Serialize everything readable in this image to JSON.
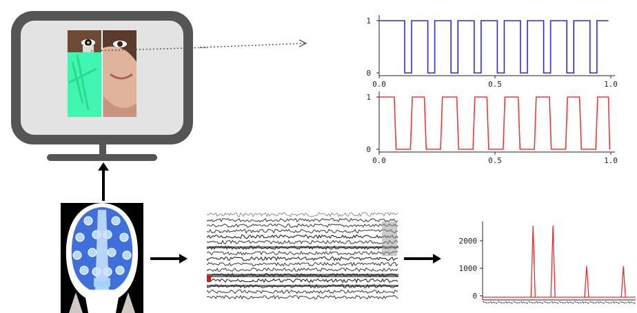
{
  "diagram": {
    "monitor_icon": "monitor-icon",
    "eeg_cap_icon": "eeg-cap-icon",
    "colors": {
      "monitor": "#555555",
      "screen": "#e3e3e3",
      "flicker_overlay": "#40f5b0",
      "arrow": "#000000",
      "cap_blue": "#2a5fd6"
    }
  },
  "chart_data": [
    {
      "type": "line",
      "step": true,
      "color": "#2b2bd8",
      "x": [
        0.0,
        0.04,
        0.04,
        0.11,
        0.11,
        0.14,
        0.14,
        0.21,
        0.21,
        0.24,
        0.24,
        0.31,
        0.31,
        0.34,
        0.34,
        0.41,
        0.41,
        0.44,
        0.44,
        0.51,
        0.51,
        0.54,
        0.54,
        0.61,
        0.61,
        0.64,
        0.64,
        0.71,
        0.71,
        0.74,
        0.74,
        0.81,
        0.81,
        0.84,
        0.84,
        0.91,
        0.91,
        0.94,
        0.94,
        0.99
      ],
      "y": [
        1,
        1,
        1,
        1,
        0,
        0,
        1,
        1,
        0,
        0,
        1,
        1,
        0,
        0,
        1,
        1,
        0,
        0,
        1,
        1,
        0,
        0,
        1,
        1,
        0,
        0,
        1,
        1,
        0,
        0,
        1,
        1,
        0,
        0,
        1,
        1,
        0,
        0,
        1,
        1
      ],
      "xticks": [
        "0.0",
        "0.5",
        "1.0"
      ],
      "yticks": [
        "0",
        "1"
      ],
      "xlim": [
        0,
        1
      ],
      "ylim": [
        0,
        1
      ]
    },
    {
      "type": "line",
      "step": true,
      "color": "#e83b3b",
      "x": [
        0.0,
        0.06,
        0.14,
        0.19,
        0.28,
        0.33,
        0.42,
        0.46,
        0.55,
        0.6,
        0.69,
        0.73,
        0.82,
        0.87,
        0.96,
        0.99
      ],
      "y": [
        1,
        1,
        1,
        1,
        1,
        1,
        1,
        1,
        1,
        1,
        1,
        1,
        1,
        1,
        1,
        1
      ],
      "low_segments": [
        [
          0.065,
          0.135
        ],
        [
          0.195,
          0.265
        ],
        [
          0.335,
          0.405
        ],
        [
          0.465,
          0.535
        ],
        [
          0.6,
          0.67
        ],
        [
          0.735,
          0.805
        ],
        [
          0.865,
          0.935
        ]
      ],
      "xticks": [
        "0.0",
        "0.5",
        "1.0"
      ],
      "yticks": [
        "0",
        "1"
      ],
      "xlim": [
        0,
        1
      ],
      "ylim": [
        0,
        1
      ]
    },
    {
      "type": "line",
      "color": "#e03030",
      "peaks": [
        {
          "x": 0.33,
          "y": 2550
        },
        {
          "x": 0.46,
          "y": 2550
        },
        {
          "x": 0.68,
          "y": 1080
        },
        {
          "x": 0.92,
          "y": 1080
        }
      ],
      "yticks": [
        "0",
        "1000",
        "2000"
      ],
      "ylim": [
        -150,
        2700
      ]
    }
  ]
}
